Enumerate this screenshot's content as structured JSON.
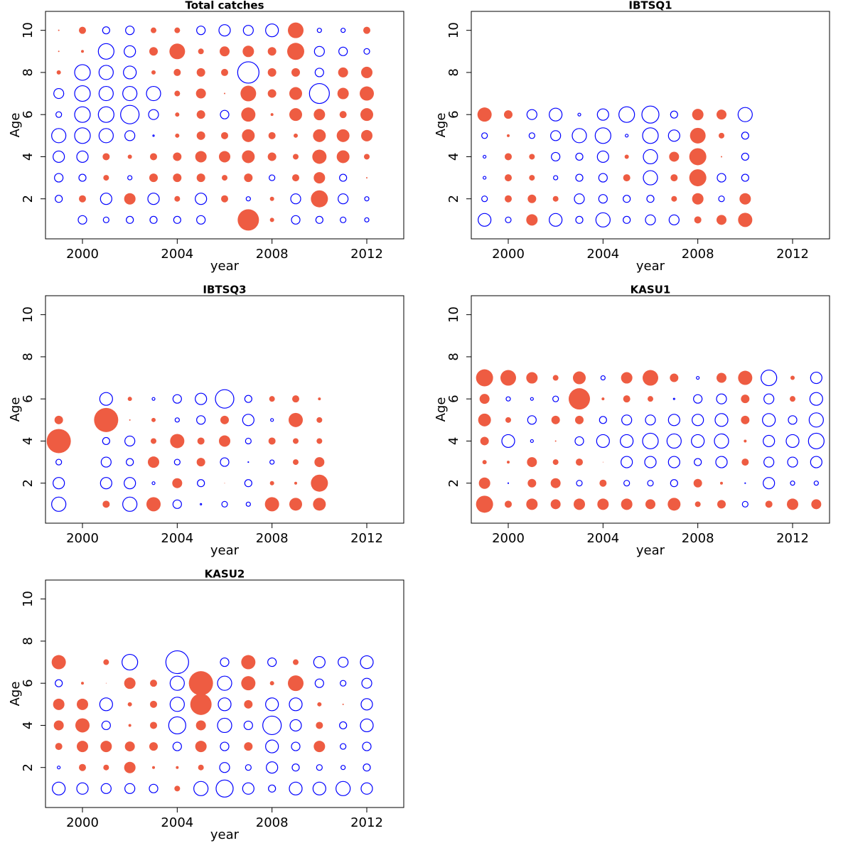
{
  "chart_data": [
    {
      "type": "bubble",
      "title": "Total catches",
      "xlabel": "year",
      "ylabel": "Age",
      "x": [
        1999,
        2000,
        2001,
        2002,
        2003,
        2004,
        2005,
        2006,
        2007,
        2008,
        2009,
        2010,
        2011,
        2012
      ],
      "y": [
        1,
        2,
        3,
        4,
        5,
        6,
        7,
        8,
        9,
        10
      ],
      "values": [
        [
          null,
          -0.6,
          -0.4,
          -0.5,
          -0.5,
          -0.5,
          -0.6,
          null,
          1.5,
          0.3,
          -0.6,
          -0.5,
          -0.4,
          -0.3
        ],
        [
          -0.5,
          0.5,
          -0.8,
          0.8,
          -0.8,
          0.4,
          -0.8,
          0.5,
          -0.3,
          0.3,
          -0.7,
          1.2,
          -0.7,
          -0.3
        ],
        [
          -0.6,
          -0.5,
          0.4,
          -0.3,
          0.6,
          0.6,
          0.6,
          0.4,
          0.6,
          -0.4,
          0.5,
          0.8,
          -0.5,
          0.1
        ],
        [
          -0.8,
          -0.8,
          0.5,
          0.3,
          0.5,
          0.6,
          0.8,
          0.8,
          0.9,
          0.6,
          0.4,
          1.0,
          0.9,
          0.4
        ],
        [
          -1.0,
          -1.1,
          -1.0,
          -0.7,
          -0.1,
          0.3,
          0.6,
          0.5,
          0.9,
          0.5,
          0.3,
          0.9,
          0.9,
          0.8
        ],
        [
          -0.4,
          -1.1,
          -1.1,
          -1.3,
          -0.7,
          0.3,
          0.6,
          -0.6,
          1.0,
          0.2,
          0.9,
          0.8,
          0.5,
          0.9
        ],
        [
          -0.7,
          -1.1,
          -1.0,
          -1.0,
          -1.0,
          0.4,
          0.7,
          0.1,
          1.1,
          0.6,
          0.9,
          -1.4,
          0.8,
          1.0
        ],
        [
          0.3,
          -1.1,
          -1.0,
          -0.9,
          0.3,
          0.5,
          0.6,
          0.5,
          -1.5,
          0.6,
          0.6,
          -0.6,
          0.7,
          0.8
        ],
        [
          0.1,
          0.2,
          -1.1,
          -0.8,
          0.6,
          1.1,
          0.4,
          0.7,
          0.8,
          0.6,
          1.2,
          -0.7,
          -0.6,
          -0.4
        ],
        [
          0.1,
          0.5,
          -0.5,
          -0.6,
          0.4,
          0.4,
          -0.6,
          -0.8,
          -0.7,
          -0.9,
          1.1,
          -0.3,
          -0.3,
          0.5
        ]
      ],
      "xlim": [
        1998.44,
        2013.56
      ],
      "ylim": [
        0.1,
        10.9
      ],
      "xticks": [
        2000,
        2004,
        2008,
        2012
      ],
      "yticks": [
        2,
        4,
        6,
        8,
        10
      ],
      "pos_color": "#EE5C42",
      "neg_color": "#0000FF"
    },
    {
      "type": "bubble",
      "title": "IBTSQ1",
      "xlabel": "year",
      "ylabel": "Age",
      "x": [
        1999,
        2000,
        2001,
        2002,
        2003,
        2004,
        2005,
        2006,
        2007,
        2008,
        2009,
        2010
      ],
      "y": [
        1,
        2,
        3,
        4,
        5,
        6
      ],
      "values": [
        [
          -0.9,
          -0.4,
          0.8,
          -0.9,
          -0.5,
          -1.0,
          -0.5,
          -0.7,
          -0.7,
          0.5,
          0.7,
          1.0
        ],
        [
          -0.4,
          0.5,
          0.6,
          0.4,
          -0.7,
          -0.6,
          -0.5,
          -0.5,
          0.4,
          0.8,
          -0.4,
          0.8
        ],
        [
          -0.2,
          0.5,
          0.4,
          -0.3,
          -0.5,
          -0.6,
          0.5,
          -1.0,
          0.5,
          1.2,
          -0.6,
          -0.5
        ],
        [
          -0.2,
          0.5,
          0.4,
          -0.6,
          -0.5,
          -0.8,
          0.3,
          -1.0,
          0.7,
          1.2,
          0.1,
          -0.5
        ],
        [
          -0.4,
          0.2,
          -0.4,
          -0.7,
          -1.0,
          -1.1,
          -0.2,
          -1.1,
          -0.8,
          1.1,
          0.4,
          -0.5
        ],
        [
          1.0,
          0.6,
          -0.7,
          -0.9,
          -0.2,
          -0.8,
          -1.1,
          -1.2,
          -0.5,
          0.8,
          0.7,
          -1.0
        ]
      ],
      "xlim": [
        1998.44,
        2013.56
      ],
      "ylim": [
        0.1,
        10.9
      ],
      "xticks": [
        2000,
        2004,
        2008,
        2012
      ],
      "yticks": [
        2,
        4,
        6,
        8,
        10
      ],
      "pos_color": "#EE5C42",
      "neg_color": "#0000FF"
    },
    {
      "type": "bubble",
      "title": "IBTSQ3",
      "xlabel": "year",
      "ylabel": "Age",
      "x": [
        1999,
        2000,
        2001,
        2002,
        2003,
        2004,
        2005,
        2006,
        2007,
        2008,
        2009,
        2010
      ],
      "y": [
        1,
        2,
        3,
        4,
        5,
        6
      ],
      "values": [
        [
          -1.0,
          null,
          0.5,
          -1.0,
          1.0,
          -0.6,
          -0.1,
          -0.4,
          -0.3,
          1.0,
          0.9,
          0.9
        ],
        [
          -0.8,
          null,
          -0.8,
          -0.8,
          -0.2,
          0.7,
          -0.5,
          0.05,
          -0.5,
          0.3,
          0.2,
          1.2
        ],
        [
          -0.4,
          null,
          -0.7,
          -0.5,
          0.8,
          -0.4,
          0.6,
          -0.6,
          -0.05,
          -0.3,
          0.4,
          0.7
        ],
        [
          1.7,
          null,
          -0.5,
          -0.7,
          0.4,
          1.0,
          0.5,
          0.8,
          -0.4,
          0.5,
          0.4,
          0.4
        ],
        [
          0.6,
          null,
          1.7,
          0.1,
          0.3,
          -0.3,
          -0.6,
          0.6,
          -0.8,
          -0.2,
          1.0,
          0.4
        ],
        [
          null,
          null,
          -0.9,
          0.3,
          -0.2,
          -0.6,
          -0.8,
          -1.3,
          -0.5,
          0.4,
          0.5,
          0.2
        ]
      ],
      "xlim": [
        1998.44,
        2013.56
      ],
      "ylim": [
        0.1,
        10.9
      ],
      "xticks": [
        2000,
        2004,
        2008,
        2012
      ],
      "yticks": [
        2,
        4,
        6,
        8,
        10
      ],
      "pos_color": "#EE5C42",
      "neg_color": "#0000FF"
    },
    {
      "type": "bubble",
      "title": "KASU1",
      "xlabel": "year",
      "ylabel": "Age",
      "x": [
        1999,
        2000,
        2001,
        2002,
        2003,
        2004,
        2005,
        2006,
        2007,
        2008,
        2009,
        2010,
        2011,
        2012,
        2013
      ],
      "y": [
        1,
        2,
        3,
        4,
        5,
        6,
        7
      ],
      "values": [
        [
          1.2,
          0.5,
          0.8,
          0.7,
          0.8,
          0.8,
          0.8,
          0.7,
          0.9,
          0.4,
          0.6,
          -0.4,
          0.5,
          0.8,
          0.7
        ],
        [
          0.8,
          -0.05,
          0.6,
          0.7,
          -0.4,
          0.5,
          -0.4,
          -0.4,
          -0.5,
          0.6,
          0.2,
          -0.05,
          -0.8,
          -0.3,
          -0.3
        ],
        [
          0.3,
          0.2,
          0.7,
          0.4,
          0.5,
          0.05,
          -0.8,
          -0.8,
          -0.8,
          -0.5,
          -0.8,
          0.5,
          -0.7,
          -0.7,
          -0.8
        ],
        [
          0.6,
          -0.9,
          -0.2,
          0.1,
          -0.6,
          -0.9,
          -0.9,
          -1.1,
          -1.0,
          -0.9,
          -1.0,
          0.2,
          -0.8,
          -0.9,
          -1.1
        ],
        [
          0.9,
          0.4,
          -0.6,
          0.6,
          0.6,
          -0.5,
          -0.7,
          -0.7,
          -0.8,
          -0.8,
          -0.9,
          0.6,
          -0.9,
          -0.6,
          -1.0
        ],
        [
          0.7,
          -0.3,
          -0.2,
          -0.4,
          1.5,
          0.2,
          0.5,
          0.4,
          -0.1,
          -0.6,
          -0.7,
          0.6,
          -0.7,
          0.4,
          -0.9
        ],
        [
          1.2,
          1.1,
          0.8,
          0.4,
          0.9,
          -0.3,
          0.8,
          1.1,
          0.6,
          -0.2,
          0.7,
          1.0,
          -1.1,
          0.3,
          -0.8
        ]
      ],
      "xlim": [
        1998.44,
        2013.56
      ],
      "ylim": [
        0.1,
        10.9
      ],
      "xticks": [
        2000,
        2004,
        2008,
        2012
      ],
      "yticks": [
        2,
        4,
        6,
        8,
        10
      ],
      "pos_color": "#EE5C42",
      "neg_color": "#0000FF"
    },
    {
      "type": "bubble",
      "title": "KASU2",
      "xlabel": "year",
      "ylabel": "Age",
      "x": [
        1999,
        2000,
        2001,
        2002,
        2003,
        2004,
        2005,
        2006,
        2007,
        2008,
        2009,
        2010,
        2011,
        2012
      ],
      "y": [
        1,
        2,
        3,
        4,
        5,
        6,
        7
      ],
      "values": [
        [
          -0.9,
          -0.8,
          -0.7,
          -0.7,
          -0.6,
          0.4,
          -1.0,
          -1.2,
          -0.8,
          -0.5,
          -0.9,
          -0.9,
          -1.0,
          -0.8
        ],
        [
          -0.2,
          0.5,
          0.4,
          0.8,
          0.2,
          0.2,
          0.4,
          -0.7,
          -0.4,
          -0.8,
          -0.5,
          -0.4,
          -0.3,
          -0.5
        ],
        [
          0.5,
          0.8,
          0.8,
          0.7,
          0.6,
          -0.6,
          0.8,
          -0.6,
          0.6,
          -0.9,
          -0.6,
          0.8,
          -0.4,
          -0.6
        ],
        [
          0.7,
          1.0,
          -0.6,
          0.2,
          0.5,
          -1.2,
          0.7,
          -1.0,
          -0.6,
          -1.3,
          -0.8,
          0.5,
          -0.5,
          -0.9
        ],
        [
          0.8,
          0.8,
          -0.9,
          0.3,
          0.5,
          -1.0,
          1.5,
          -0.9,
          0.6,
          -0.9,
          -0.9,
          0.3,
          0.1,
          -0.8
        ],
        [
          -0.5,
          0.2,
          0.05,
          0.8,
          0.5,
          -1.0,
          1.7,
          -1.0,
          1.0,
          0.3,
          1.1,
          -0.6,
          -0.4,
          -0.7
        ],
        [
          1.0,
          null,
          0.4,
          -1.1,
          null,
          -1.6,
          null,
          -0.6,
          1.0,
          -0.6,
          0.4,
          -0.8,
          -0.7,
          -0.9
        ]
      ],
      "xlim": [
        1998.44,
        2013.56
      ],
      "ylim": [
        0.1,
        10.9
      ],
      "xticks": [
        2000,
        2004,
        2008,
        2012
      ],
      "yticks": [
        2,
        4,
        6,
        8,
        10
      ],
      "pos_color": "#EE5C42",
      "neg_color": "#0000FF"
    }
  ]
}
